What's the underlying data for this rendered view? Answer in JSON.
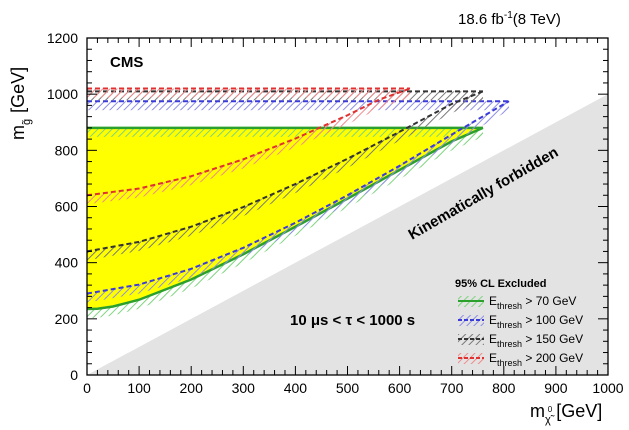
{
  "chart_data": {
    "type": "area",
    "luminosity_label": "18.6 fb",
    "luminosity_sup": "-1",
    "energy_label": "(8 TeV)",
    "experiment": "CMS",
    "xlabel_main": "m",
    "xlabel_sub": "χ̃",
    "xlabel_sup": "0",
    "xlabel_unit": "[GeV]",
    "ylabel_main": "m",
    "ylabel_sub": "g̃",
    "ylabel_unit": "[GeV]",
    "xlim": [
      0,
      1000
    ],
    "ylim": [
      0,
      1200
    ],
    "x_ticks": [
      0,
      100,
      200,
      300,
      400,
      500,
      600,
      700,
      800,
      900,
      1000
    ],
    "y_ticks": [
      0,
      200,
      400,
      600,
      800,
      1000,
      1200
    ],
    "annotations": {
      "forbidden": "Kinematically forbidden",
      "lifetime": "10 μs < τ < 1000 s"
    },
    "forbidden_region": {
      "color": "#e3e3e3",
      "boundary": [
        [
          0,
          0
        ],
        [
          1000,
          1000
        ]
      ]
    },
    "legend": {
      "title": "95% CL Excluded",
      "placement": "bottom-right"
    },
    "series": [
      {
        "name": "E > 70 GeV",
        "name_main": "E",
        "name_sub": "thresh",
        "name_tail": " > 70 GeV",
        "color": "#2ca02c",
        "hatch": "#7fd47f",
        "fill": "#ffff00",
        "upper": 880,
        "lower": [
          [
            0,
            235
          ],
          [
            20,
            236
          ],
          [
            50,
            244
          ],
          [
            100,
            268
          ],
          [
            200,
            340
          ],
          [
            300,
            430
          ],
          [
            400,
            528
          ],
          [
            500,
            628
          ],
          [
            600,
            730
          ],
          [
            700,
            832
          ],
          [
            760,
            880
          ]
        ]
      },
      {
        "name": "E > 100 GeV",
        "name_main": "E",
        "name_sub": "thresh",
        "name_tail": " > 100 GeV",
        "color": "#3b3bd9",
        "hatch": "#8f8fe6",
        "upper": 975,
        "lower": [
          [
            0,
            290
          ],
          [
            100,
            322
          ],
          [
            200,
            378
          ],
          [
            300,
            453
          ],
          [
            400,
            542
          ],
          [
            500,
            640
          ],
          [
            600,
            745
          ],
          [
            700,
            856
          ],
          [
            810,
            975
          ]
        ]
      },
      {
        "name": "E > 150 GeV",
        "name_main": "E",
        "name_sub": "thresh",
        "name_tail": " > 150 GeV",
        "color": "#333333",
        "hatch": "#7a7a7a",
        "upper": 1010,
        "lower": [
          [
            0,
            440
          ],
          [
            100,
            474
          ],
          [
            200,
            528
          ],
          [
            300,
            598
          ],
          [
            400,
            680
          ],
          [
            500,
            770
          ],
          [
            600,
            866
          ],
          [
            700,
            965
          ],
          [
            760,
            1010
          ]
        ]
      },
      {
        "name": "E > 200 GeV",
        "name_main": "E",
        "name_sub": "thresh",
        "name_tail": " > 200 GeV",
        "color": "#e03030",
        "hatch": "#f08a8a",
        "upper": 1020,
        "lower": [
          [
            0,
            640
          ],
          [
            100,
            664
          ],
          [
            200,
            708
          ],
          [
            300,
            768
          ],
          [
            400,
            842
          ],
          [
            500,
            925
          ],
          [
            560,
            980
          ],
          [
            620,
            1020
          ]
        ]
      }
    ]
  }
}
